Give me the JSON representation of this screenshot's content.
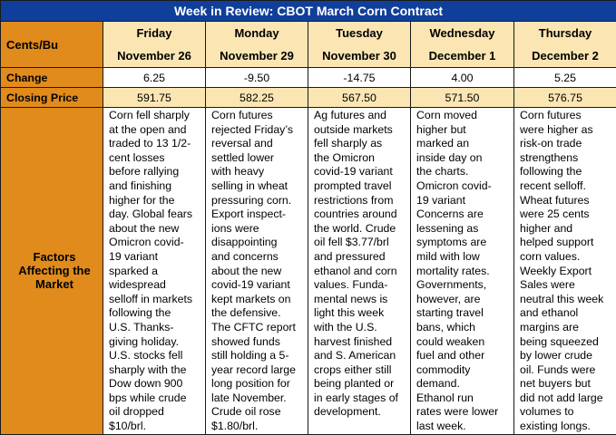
{
  "title": "Week in Review: CBOT March Corn Contract",
  "units_label": "Cents/Bu",
  "days": [
    {
      "day": "Friday",
      "date": "November 26",
      "change": "6.25",
      "close": "591.75",
      "factors": [
        "Corn fell sharply",
        "at the open and",
        "traded to 13 1/2-",
        "cent losses",
        "before rallying",
        "and finishing",
        "higher for the",
        "day. Global fears",
        "about the new",
        "Omicron covid-",
        "19 variant",
        "sparked a",
        "widespread",
        "selloff in markets",
        "following the",
        "U.S. Thanks-",
        "giving holiday.",
        "U.S. stocks fell",
        "sharply with the",
        "Dow down 900",
        "bps while crude",
        "oil dropped",
        "$10/brl."
      ]
    },
    {
      "day": "Monday",
      "date": "November 29",
      "change": "-9.50",
      "close": "582.25",
      "factors": [
        "Corn futures",
        "rejected Friday’s",
        "reversal and",
        "settled lower",
        "with heavy",
        "selling in wheat",
        "pressuring corn.",
        "Export inspect-",
        "ions were",
        "disappointing",
        "and concerns",
        "about the new",
        "covid-19 variant",
        "kept markets on",
        "the defensive.",
        "The CFTC report",
        "showed funds",
        "still holding a 5-",
        "year record large",
        "long position for",
        "late November.",
        "Crude oil rose",
        "$1.80/brl."
      ]
    },
    {
      "day": "Tuesday",
      "date": "November 30",
      "change": "-14.75",
      "close": "567.50",
      "factors": [
        "Ag futures and",
        "outside markets",
        "fell sharply as",
        "the Omicron",
        "covid-19 variant",
        "prompted travel",
        "restrictions from",
        "countries around",
        "the world. Crude",
        "oil fell $3.77/brl",
        "and pressured",
        "ethanol and corn",
        "values. Funda-",
        "mental news is",
        "light this week",
        "with the U.S.",
        "harvest finished",
        "and S. American",
        "crops either still",
        "being planted or",
        "in early stages of",
        "development."
      ]
    },
    {
      "day": "Wednesday",
      "date": "December 1",
      "change": "4.00",
      "close": "571.50",
      "factors": [
        "Corn moved",
        "higher but",
        "marked an",
        "inside day on",
        "the charts.",
        "Omicron covid-",
        "19 variant",
        "Concerns are",
        "lessening as",
        "symptoms are",
        "mild with low",
        "mortality rates.",
        "Governments,",
        "however, are",
        "starting travel",
        "bans, which",
        "could weaken",
        "fuel and other",
        "commodity",
        "demand.",
        "Ethanol run",
        "rates were lower",
        "last week."
      ]
    },
    {
      "day": "Thursday",
      "date": "December 2",
      "change": "5.25",
      "close": "576.75",
      "factors": [
        "Corn futures",
        "were higher as",
        "risk-on trade",
        "strengthens",
        "following the",
        "recent selloff.",
        "Wheat futures",
        "were 25 cents",
        "higher and",
        "helped support",
        "corn values.",
        "Weekly Export",
        "Sales were",
        "neutral this week",
        "and ethanol",
        "margins are",
        "being squeezed",
        "by lower crude",
        "oil. Funds were",
        "net buyers but",
        "did not add large",
        "volumes to",
        "existing longs."
      ]
    }
  ],
  "row_labels": {
    "change": "Change",
    "closing_price": "Closing Price",
    "factors_line1": "Factors",
    "factors_line2": "Affecting the",
    "factors_line3": "Market"
  },
  "colors": {
    "title_bg": "#0f3f9a",
    "label_bg": "#e08b1c",
    "header_bg": "#fbe6b3"
  }
}
